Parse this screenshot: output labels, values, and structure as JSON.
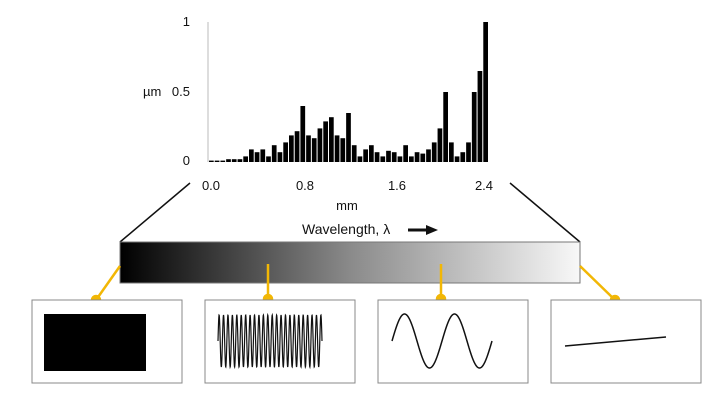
{
  "chart_data": {
    "type": "bar",
    "title": "",
    "xlabel": "mm",
    "ylabel": "µm",
    "xlim": [
      0.0,
      2.4
    ],
    "ylim": [
      0,
      1
    ],
    "xticks": [
      "0.0",
      "0.8",
      "1.6",
      "2.4"
    ],
    "yticks": [
      "0",
      "0.5",
      "1"
    ],
    "grid": false,
    "values": [
      0.01,
      0.01,
      0.01,
      0.02,
      0.02,
      0.02,
      0.04,
      0.09,
      0.07,
      0.09,
      0.04,
      0.12,
      0.07,
      0.14,
      0.19,
      0.22,
      0.4,
      0.19,
      0.17,
      0.24,
      0.29,
      0.32,
      0.19,
      0.17,
      0.35,
      0.12,
      0.04,
      0.09,
      0.12,
      0.07,
      0.04,
      0.08,
      0.07,
      0.04,
      0.12,
      0.04,
      0.07,
      0.06,
      0.09,
      0.14,
      0.24,
      0.5,
      0.14,
      0.04,
      0.07,
      0.14,
      0.5,
      0.65,
      1.0
    ]
  },
  "spectrum": {
    "label": "Wavelength, λ",
    "arrow_icon": "arrow-right-icon",
    "accent_color": "#f2b705"
  },
  "panels": [
    {
      "name": "very-short-wavelength"
    },
    {
      "name": "short-wavelength"
    },
    {
      "name": "medium-wavelength"
    },
    {
      "name": "long-wavelength"
    }
  ]
}
